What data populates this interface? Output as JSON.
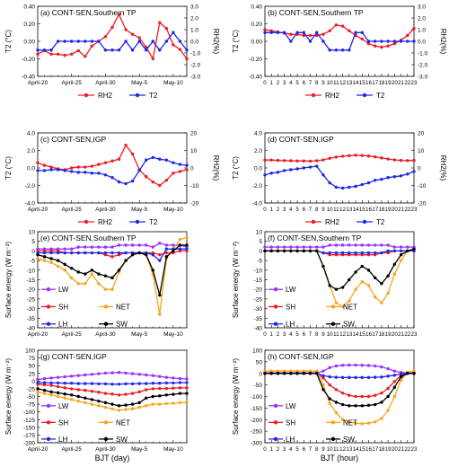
{
  "colors": {
    "red": "#ee1c25",
    "blue": "#1f28e6",
    "purple": "#9933ff",
    "orange": "#f7a51c",
    "black": "#000000"
  },
  "xlabels": {
    "left": "BJT (day)",
    "right": "BJT (hour)"
  },
  "chart_data": [
    {
      "id": "a",
      "type": "line",
      "title": "(a) CONT-SEN,Southern TP",
      "ylabel": "T2 (°C)",
      "y2label": "RH2(%)",
      "ylim": [
        -0.4,
        0.4
      ],
      "yticks": [
        "-0.40",
        "-0.20",
        "0.00",
        "0.20",
        "0.40"
      ],
      "y2lim": [
        -3.0,
        3.0
      ],
      "y2ticks": [
        "-3.0",
        "-2.0",
        "-1.0",
        "0.0",
        "1.0",
        "2.0",
        "3.0"
      ],
      "xticks": [
        "April-20",
        "April-25",
        "April-30",
        "May-5",
        "May-10"
      ],
      "series": [
        {
          "name": "RH2",
          "color": "red",
          "axis": "right",
          "values": [
            -1.1,
            -0.8,
            -1.1,
            -1.1,
            -1.2,
            -1.1,
            -0.8,
            -1.3,
            -0.4,
            0.0,
            0.4,
            1.2,
            2.3,
            1.0,
            0.6,
            0.3,
            -0.5,
            -1.5,
            1.6,
            1.1,
            -0.3,
            -0.7,
            -1.5
          ]
        },
        {
          "name": "T2",
          "color": "blue",
          "axis": "left",
          "values": [
            -0.1,
            -0.1,
            -0.1,
            0.0,
            0.0,
            0.0,
            0.0,
            0.0,
            0.0,
            0.0,
            -0.1,
            -0.1,
            -0.1,
            0.0,
            -0.1,
            0.0,
            -0.1,
            0.0,
            -0.1,
            0.0,
            0.1,
            0.0,
            -0.1
          ]
        }
      ]
    },
    {
      "id": "b",
      "type": "line",
      "title": "(b) CONT-SEN,Southern TP",
      "ylabel": "T2 (°C)",
      "y2label": "RH2(%)",
      "ylim": [
        -0.4,
        0.4
      ],
      "yticks": [
        "-0.40",
        "-0.20",
        "0.00",
        "0.20",
        "0.40"
      ],
      "y2lim": [
        -3.0,
        3.0
      ],
      "y2ticks": [
        "-3.0",
        "-2.0",
        "-1.0",
        "0.0",
        "1.0",
        "2.0",
        "3.0"
      ],
      "xticks": [
        "0",
        "1",
        "2",
        "3",
        "4",
        "5",
        "6",
        "7",
        "8",
        "9",
        "10",
        "11",
        "12",
        "13",
        "14",
        "15",
        "16",
        "17",
        "18",
        "19",
        "20",
        "21",
        "22",
        "23"
      ],
      "series": [
        {
          "name": "RH2",
          "color": "red",
          "axis": "right",
          "values": [
            1.0,
            0.9,
            0.8,
            0.7,
            0.6,
            0.6,
            0.5,
            0.5,
            0.5,
            0.6,
            0.9,
            1.4,
            1.3,
            0.9,
            0.5,
            0.2,
            -0.2,
            -0.4,
            -0.5,
            -0.4,
            -0.2,
            0.1,
            0.5,
            1.1
          ]
        },
        {
          "name": "T2",
          "color": "blue",
          "axis": "left",
          "values": [
            0.1,
            0.1,
            0.1,
            0.1,
            0.0,
            0.1,
            0.1,
            0.0,
            0.1,
            0.0,
            -0.1,
            -0.1,
            -0.1,
            -0.1,
            0.1,
            0.1,
            0.0,
            0.0,
            0.0,
            0.0,
            0.0,
            0.0,
            0.0,
            0.0
          ]
        }
      ]
    },
    {
      "id": "c",
      "type": "line",
      "title": "(c) CONT-SEN,IGP",
      "ylabel": "T2 (°C)",
      "y2label": "RH2(%)",
      "ylim": [
        -4.0,
        4.0
      ],
      "yticks": [
        "-4.0",
        "-2.0",
        "0.0",
        "2.0",
        "4.0"
      ],
      "y2lim": [
        -20,
        20
      ],
      "y2ticks": [
        "-20",
        "-10",
        "0",
        "10",
        "20"
      ],
      "xticks": [
        "April-20",
        "April-25",
        "April-30",
        "May-5",
        "May-10"
      ],
      "series": [
        {
          "name": "RH2",
          "color": "red",
          "axis": "right",
          "values": [
            3.0,
            1.5,
            0.5,
            -0.5,
            -1.0,
            0.0,
            0.5,
            0.5,
            1.0,
            2.0,
            3.0,
            4.0,
            5.0,
            13.0,
            8.0,
            -1.0,
            -5.0,
            -8.0,
            -10.0,
            -7.0,
            -3.0,
            -2.0,
            -1.0
          ]
        },
        {
          "name": "T2",
          "color": "blue",
          "axis": "left",
          "values": [
            -0.3,
            -0.3,
            -0.2,
            -0.2,
            -0.3,
            -0.4,
            -0.5,
            -0.5,
            -0.6,
            -0.6,
            -0.8,
            -1.1,
            -1.6,
            -1.8,
            -1.5,
            -0.3,
            0.9,
            1.2,
            1.0,
            0.9,
            0.6,
            0.4,
            0.3
          ]
        }
      ]
    },
    {
      "id": "d",
      "type": "line",
      "title": "(d) CONT-SEN,IGP",
      "ylabel": "T2 (°C)",
      "y2label": "RH2(%)",
      "ylim": [
        -4.0,
        4.0
      ],
      "yticks": [
        "-4.0",
        "-2.0",
        "0.0",
        "2.0",
        "4.0"
      ],
      "y2lim": [
        -20,
        20
      ],
      "y2ticks": [
        "-20",
        "-10",
        "0",
        "10",
        "20"
      ],
      "xticks": [
        "0",
        "1",
        "2",
        "3",
        "4",
        "5",
        "6",
        "7",
        "8",
        "9",
        "10",
        "11",
        "12",
        "13",
        "14",
        "15",
        "16",
        "17",
        "18",
        "19",
        "20",
        "21",
        "22",
        "23"
      ],
      "series": [
        {
          "name": "RH2",
          "color": "red",
          "axis": "right",
          "values": [
            4.5,
            4.5,
            4.3,
            4.2,
            4.1,
            4.0,
            4.0,
            3.9,
            4.1,
            4.6,
            5.5,
            6.2,
            6.7,
            7.0,
            7.3,
            7.1,
            6.8,
            6.3,
            5.7,
            5.1,
            4.6,
            4.3,
            4.2,
            4.3
          ]
        },
        {
          "name": "T2",
          "color": "blue",
          "axis": "left",
          "values": [
            -0.8,
            -0.6,
            -0.5,
            -0.3,
            -0.2,
            -0.1,
            0.0,
            0.1,
            0.2,
            -0.8,
            -1.7,
            -2.2,
            -2.3,
            -2.2,
            -2.1,
            -1.9,
            -1.7,
            -1.4,
            -1.3,
            -1.1,
            -1.0,
            -0.9,
            -0.7,
            -0.4
          ]
        }
      ]
    },
    {
      "id": "e",
      "type": "line",
      "title": "(e) CONT-SEN,Southern TP",
      "ylabel": "Surface energy (W m⁻²)",
      "ylim": [
        -40,
        10
      ],
      "yticks": [
        "-40",
        "-35",
        "-30",
        "-25",
        "-20",
        "-15",
        "-10",
        "-5",
        "0",
        "5",
        "10"
      ],
      "xticks": [
        "April-20",
        "April-25",
        "April-30",
        "May-5",
        "May-10"
      ],
      "series": [
        {
          "name": "LW",
          "color": "purple",
          "values": [
            1,
            1,
            1,
            1,
            1,
            1,
            2,
            2,
            2,
            2,
            2,
            2,
            3,
            3,
            3,
            3,
            3,
            2,
            4,
            3,
            3,
            3,
            2
          ]
        },
        {
          "name": "SH",
          "color": "red",
          "values": [
            0,
            0,
            0,
            0,
            -1,
            -1,
            -1,
            -1,
            -1,
            -1,
            -2,
            -3,
            -2,
            -1,
            -1,
            -1,
            -1,
            -1,
            -2,
            -1,
            -1,
            0,
            0
          ]
        },
        {
          "name": "NET",
          "color": "orange",
          "values": [
            -4,
            -5,
            -6,
            -8,
            -10,
            -14,
            -17,
            -17,
            -12,
            -17,
            -20,
            -20,
            -11,
            -5,
            -2,
            -1,
            -2,
            -12,
            -33,
            -4,
            1,
            6,
            7
          ]
        },
        {
          "name": "LH",
          "color": "blue",
          "values": [
            -1,
            -1,
            -1,
            -1,
            -1,
            -1,
            -1,
            -1,
            -1,
            -1,
            -1,
            -1,
            -1,
            -1,
            -1,
            -1,
            -1,
            -2,
            -5,
            1,
            1,
            1,
            1
          ]
        },
        {
          "name": "SW",
          "color": "black",
          "values": [
            -2,
            -3,
            -4,
            -5,
            -7,
            -9,
            -11,
            -12,
            -10,
            -12,
            -13,
            -14,
            -10,
            -5,
            -2,
            -1,
            -2,
            -10,
            -23,
            -3,
            0,
            3,
            3
          ]
        }
      ]
    },
    {
      "id": "f",
      "type": "line",
      "title": "(f) CONT-SEN,Southern TP",
      "ylabel": "Surface energy (W m⁻²)",
      "ylim": [
        -40,
        10
      ],
      "yticks": [
        "-40",
        "-35",
        "-30",
        "-25",
        "-20",
        "-15",
        "-10",
        "-5",
        "0",
        "5",
        "10"
      ],
      "xticks": [
        "0",
        "1",
        "2",
        "3",
        "4",
        "5",
        "6",
        "7",
        "8",
        "9",
        "10",
        "11",
        "12",
        "13",
        "14",
        "15",
        "16",
        "17",
        "18",
        "19",
        "20",
        "21",
        "22",
        "23"
      ],
      "series": [
        {
          "name": "LW",
          "color": "purple",
          "values": [
            2,
            2,
            2,
            2,
            2,
            2,
            2,
            2,
            2,
            2,
            3,
            3,
            3,
            3,
            3,
            3,
            3,
            3,
            3,
            3,
            2,
            2,
            2,
            2
          ]
        },
        {
          "name": "SH",
          "color": "red",
          "values": [
            0,
            0,
            0,
            0,
            0,
            0,
            0,
            0,
            0,
            -1,
            -2,
            -2,
            -2,
            -2,
            -2,
            -2,
            -2,
            -2,
            -1,
            -1,
            0,
            0,
            0,
            0
          ]
        },
        {
          "name": "NET",
          "color": "orange",
          "values": [
            0,
            0,
            0,
            0,
            0,
            0,
            0,
            0,
            0,
            -8,
            -18,
            -27,
            -29,
            -26,
            -20,
            -16,
            -18,
            -24,
            -27,
            -22,
            -12,
            -5,
            0,
            1
          ]
        },
        {
          "name": "LH",
          "color": "blue",
          "values": [
            0,
            0,
            0,
            0,
            0,
            0,
            0,
            0,
            0,
            -1,
            -1,
            -1,
            -1,
            -1,
            -1,
            -1,
            -1,
            -1,
            -1,
            0,
            0,
            0,
            0,
            0
          ]
        },
        {
          "name": "SW",
          "color": "black",
          "values": [
            0,
            0,
            0,
            0,
            0,
            0,
            0,
            0,
            0,
            -8,
            -18,
            -20,
            -19,
            -15,
            -11,
            -8,
            -10,
            -14,
            -17,
            -13,
            -7,
            -2,
            0,
            1
          ]
        }
      ]
    },
    {
      "id": "g",
      "type": "line",
      "title": "(g) CONT-SEN,IGP",
      "ylabel": "Surface energy (W m⁻²)",
      "ylim": [
        -200,
        100
      ],
      "yticks": [
        "-200",
        "-175",
        "-150",
        "-125",
        "-100",
        "-75",
        "-50",
        "-25",
        "0",
        "25",
        "50",
        "75",
        "100"
      ],
      "xticks": [
        "April-20",
        "April-25",
        "April-30",
        "May-5",
        "May-10"
      ],
      "series": [
        {
          "name": "LW",
          "color": "purple",
          "values": [
            5,
            8,
            10,
            12,
            14,
            16,
            18,
            20,
            22,
            24,
            26,
            27,
            28,
            26,
            24,
            22,
            20,
            18,
            15,
            12,
            10,
            8,
            7
          ]
        },
        {
          "name": "SH",
          "color": "red",
          "values": [
            -10,
            -12,
            -14,
            -18,
            -22,
            -25,
            -28,
            -30,
            -33,
            -36,
            -40,
            -42,
            -45,
            -43,
            -40,
            -35,
            -28,
            -25,
            -24,
            -24,
            -23,
            -22,
            -22
          ]
        },
        {
          "name": "NET",
          "color": "orange",
          "values": [
            -35,
            -40,
            -45,
            -50,
            -55,
            -60,
            -65,
            -70,
            -75,
            -80,
            -85,
            -90,
            -95,
            -92,
            -90,
            -85,
            -80,
            -75,
            -75,
            -73,
            -72,
            -70,
            -70
          ]
        },
        {
          "name": "LH",
          "color": "blue",
          "values": [
            -5,
            -5,
            -6,
            -6,
            -7,
            -7,
            -8,
            -8,
            -8,
            -9,
            -9,
            -10,
            -10,
            -9,
            -9,
            -8,
            -8,
            -7,
            -7,
            -6,
            -6,
            -5,
            -5
          ]
        },
        {
          "name": "SW",
          "color": "black",
          "values": [
            -25,
            -30,
            -35,
            -38,
            -42,
            -45,
            -50,
            -55,
            -60,
            -65,
            -70,
            -75,
            -80,
            -78,
            -75,
            -70,
            -55,
            -50,
            -48,
            -45,
            -43,
            -40,
            -40
          ]
        }
      ]
    },
    {
      "id": "h",
      "type": "line",
      "title": "(h) CONT-SEN,IGP",
      "ylabel": "Surface energy (W m⁻²)",
      "ylim": [
        -300,
        100
      ],
      "yticks": [
        "-300",
        "-250",
        "-200",
        "-150",
        "-100",
        "-50",
        "0",
        "50",
        "100"
      ],
      "xticks": [
        "0",
        "1",
        "2",
        "3",
        "4",
        "5",
        "6",
        "7",
        "8",
        "9",
        "10",
        "11",
        "12",
        "13",
        "14",
        "15",
        "16",
        "17",
        "18",
        "19",
        "20",
        "21",
        "22",
        "23"
      ],
      "series": [
        {
          "name": "LW",
          "color": "purple",
          "values": [
            2,
            2,
            2,
            2,
            2,
            2,
            2,
            2,
            2,
            10,
            25,
            32,
            35,
            36,
            36,
            35,
            34,
            32,
            28,
            20,
            10,
            4,
            2,
            2
          ]
        },
        {
          "name": "SH",
          "color": "red",
          "values": [
            0,
            0,
            0,
            0,
            0,
            0,
            0,
            0,
            0,
            -20,
            -50,
            -70,
            -85,
            -95,
            -100,
            -100,
            -100,
            -95,
            -85,
            -65,
            -35,
            -10,
            0,
            0
          ]
        },
        {
          "name": "NET",
          "color": "orange",
          "values": [
            10,
            10,
            10,
            10,
            10,
            10,
            10,
            10,
            10,
            -50,
            -130,
            -170,
            -200,
            -210,
            -215,
            -218,
            -215,
            -210,
            -195,
            -160,
            -100,
            -30,
            5,
            10
          ]
        },
        {
          "name": "LH",
          "color": "blue",
          "values": [
            0,
            0,
            0,
            0,
            0,
            0,
            0,
            0,
            0,
            -10,
            -15,
            -17,
            -18,
            -18,
            -18,
            -18,
            -18,
            -17,
            -16,
            -12,
            -8,
            -3,
            0,
            0
          ]
        },
        {
          "name": "SW",
          "color": "black",
          "values": [
            0,
            0,
            0,
            0,
            0,
            0,
            0,
            0,
            0,
            -70,
            -110,
            -125,
            -135,
            -140,
            -140,
            -140,
            -138,
            -135,
            -125,
            -100,
            -60,
            -15,
            0,
            0
          ]
        }
      ]
    }
  ]
}
